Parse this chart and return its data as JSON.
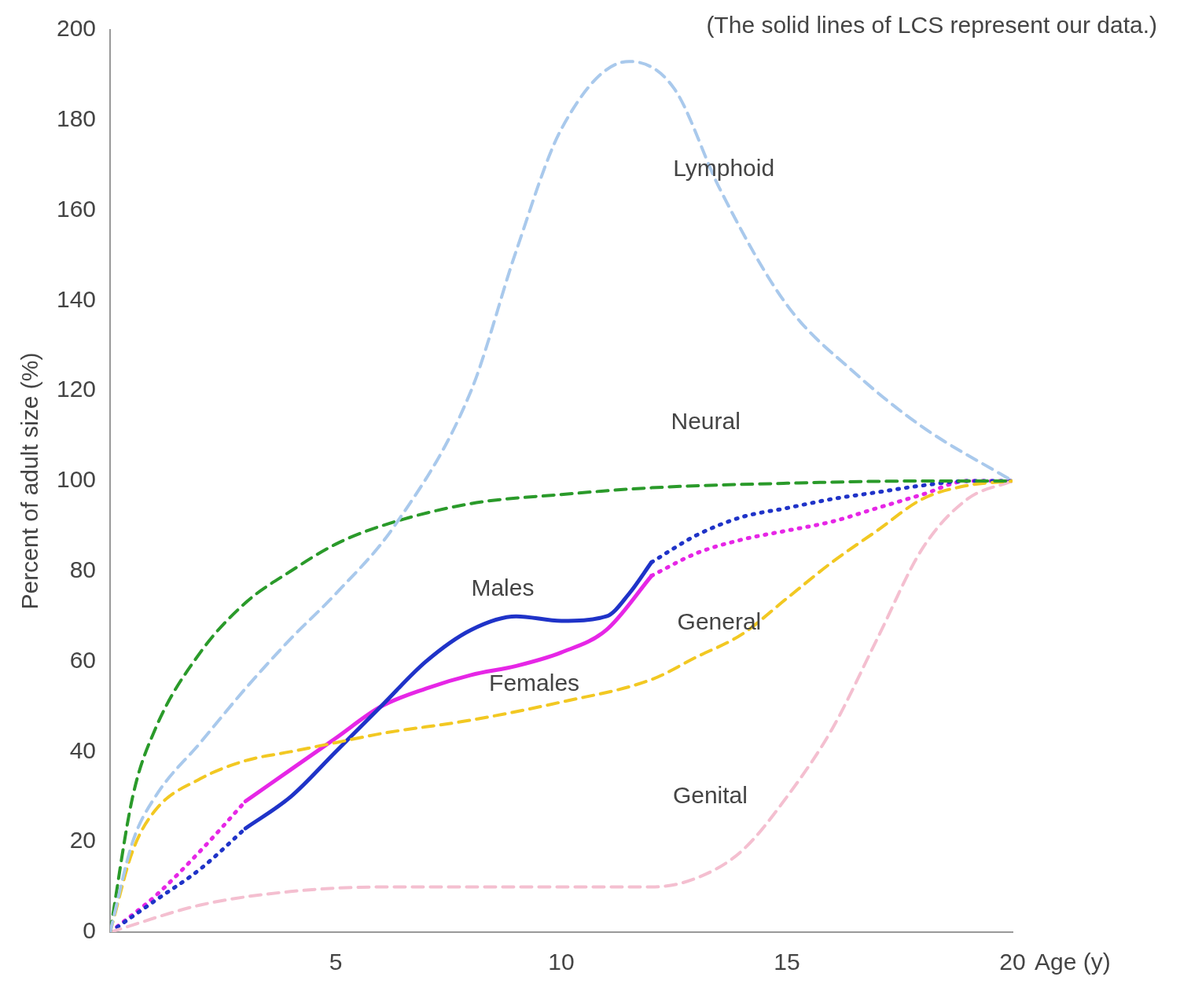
{
  "chart_data": {
    "type": "line",
    "xlabel": "Age (y)",
    "ylabel": "Percent of adult size (%)",
    "xlim": [
      0,
      20
    ],
    "xticks": [
      5,
      10,
      15,
      20
    ],
    "ylim": [
      0,
      200
    ],
    "yticks": [
      0,
      20,
      40,
      60,
      80,
      100,
      120,
      140,
      160,
      180,
      200
    ],
    "grid": false,
    "legend": false,
    "marker": "none",
    "series": [
      {
        "name": "Lymphoid",
        "color": "#a9c9ec",
        "line_style": "dashed",
        "x": [
          0,
          0.5,
          1,
          2,
          3,
          4,
          5,
          6.3,
          8,
          9,
          10,
          11.5,
          12.5,
          13.5,
          15,
          16.5,
          18,
          20
        ],
        "values": [
          0,
          20,
          30,
          42,
          54,
          65,
          75,
          90,
          120,
          151,
          178,
          193,
          187,
          165,
          139,
          124,
          112,
          100
        ]
      },
      {
        "name": "Neural",
        "color": "#2a9a2a",
        "line_style": "dashed",
        "x": [
          0,
          0.5,
          1,
          2,
          3,
          4,
          5,
          6,
          8,
          10,
          12,
          15,
          18,
          20
        ],
        "values": [
          0,
          30,
          45,
          62,
          73,
          80,
          86,
          90,
          95,
          97,
          98.5,
          99.5,
          100,
          100
        ]
      },
      {
        "name": "General",
        "color": "#f2c822",
        "line_style": "dashed",
        "x": [
          0,
          0.5,
          1,
          2,
          3,
          4,
          5,
          6,
          8,
          10,
          12,
          13,
          14,
          15,
          16,
          17,
          18,
          19,
          20
        ],
        "values": [
          0,
          18,
          27,
          34,
          38,
          40,
          42,
          44,
          47,
          51,
          56,
          61,
          66,
          74,
          82,
          89,
          96,
          99,
          100
        ]
      },
      {
        "name": "Genital",
        "color": "#f4bfd0",
        "line_style": "dashed",
        "x": [
          0,
          2,
          4,
          6,
          10,
          12,
          13,
          14,
          15,
          16,
          17,
          18,
          19,
          20
        ],
        "values": [
          0,
          6,
          9,
          10,
          10,
          10,
          12,
          18,
          30,
          45,
          65,
          85,
          96,
          100
        ]
      },
      {
        "color": "#1f33c8",
        "line_style": "dotted",
        "x": [
          0,
          1,
          2,
          3,
          7.5,
          12,
          13,
          14,
          15,
          16,
          17,
          18,
          19,
          20
        ],
        "values": [
          0,
          7,
          14,
          23,
          null,
          82,
          88,
          92,
          94,
          96,
          97.5,
          99,
          100,
          100
        ]
      },
      {
        "color": "#e626e6",
        "line_style": "dotted",
        "x": [
          0,
          1,
          2,
          3,
          7.5,
          12,
          13,
          14,
          15,
          16,
          17,
          18,
          19,
          20
        ],
        "values": [
          0,
          8,
          18,
          29,
          null,
          79,
          84,
          87,
          89,
          91,
          94,
          97,
          100,
          100
        ]
      },
      {
        "name": "Males",
        "color": "#1f33c8",
        "line_style": "solid",
        "x": [
          3,
          4,
          5,
          6,
          7,
          8,
          9,
          10,
          11,
          11.5,
          12
        ],
        "values": [
          23,
          30,
          40,
          50,
          60,
          67,
          70,
          69,
          70,
          75,
          82
        ]
      },
      {
        "name": "Females",
        "color": "#e626e6",
        "line_style": "solid",
        "x": [
          3,
          4,
          5,
          6,
          7,
          8,
          9,
          10,
          11,
          12
        ],
        "values": [
          29,
          36,
          43,
          50,
          54,
          57,
          59,
          62,
          67,
          79
        ]
      }
    ],
    "annotations": [
      "(The solid lines of LCS represent our data.)"
    ]
  }
}
